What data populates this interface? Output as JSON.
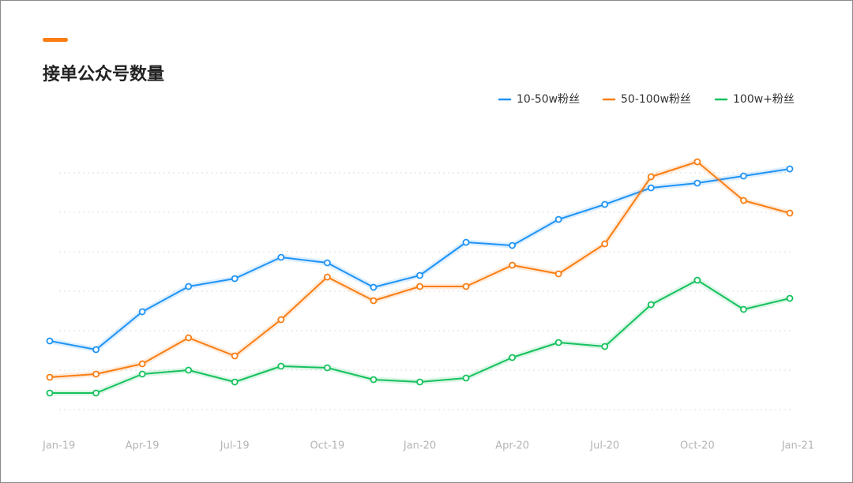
{
  "chart_data": {
    "type": "line",
    "title": "接单公众号数量",
    "categories": [
      "Jan-19",
      null,
      "Apr-19",
      null,
      "Jul-19",
      null,
      "Oct-19",
      null,
      "Jan-20",
      null,
      "Apr-20",
      null,
      "Jul-20",
      null,
      "Oct-20",
      null,
      "Jan-21"
    ],
    "series": [
      {
        "name": "10-50w粉丝",
        "color": "#1f93f5",
        "values": [
          1.74,
          1.52,
          2.48,
          3.12,
          3.32,
          3.86,
          3.72,
          3.1,
          3.4,
          4.24,
          4.16,
          4.82,
          5.2,
          5.62,
          5.74,
          5.92,
          6.1
        ]
      },
      {
        "name": "50-100w粉丝",
        "color": "#fa7d13",
        "values": [
          0.82,
          0.9,
          1.16,
          1.82,
          1.36,
          2.28,
          3.36,
          2.76,
          3.12,
          3.12,
          3.66,
          3.44,
          4.2,
          5.9,
          6.28,
          5.3,
          4.98
        ]
      },
      {
        "name": "100w+粉丝",
        "color": "#16c15e",
        "values": [
          0.42,
          0.42,
          0.9,
          1.0,
          0.7,
          1.1,
          1.06,
          0.76,
          0.7,
          0.8,
          1.32,
          1.7,
          1.6,
          2.66,
          3.28,
          2.54,
          2.82
        ]
      }
    ],
    "ylim": [
      0,
      6
    ],
    "grid_lines": [
      0,
      1,
      2,
      3,
      4,
      5,
      6
    ],
    "legend": "top-right"
  }
}
